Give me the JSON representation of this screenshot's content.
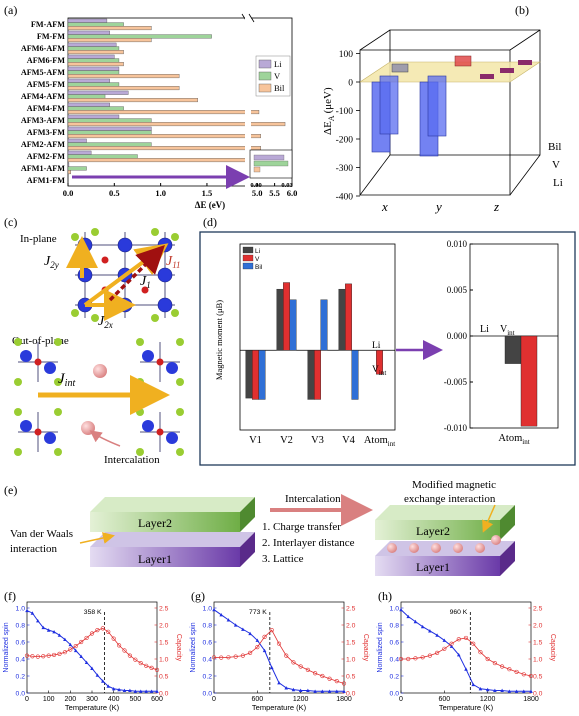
{
  "panel_labels": {
    "a": "(a)",
    "b": "(b)",
    "c": "(c)",
    "d": "(d)",
    "e": "(e)",
    "f": "(f)",
    "g": "(g)",
    "h": "(h)"
  },
  "chart_data": [
    {
      "id": "a",
      "type": "bar",
      "orientation": "horizontal",
      "categories": [
        "AFM1-FM",
        "AFM1-AFM",
        "AFM2-FM",
        "AFM2-AFM",
        "AFM3-FM",
        "AFM3-AFM",
        "AFM4-FM",
        "AFM4-AFM",
        "AFM5-FM",
        "AFM5-AFM",
        "AFM6-FM",
        "AFM6-AFM",
        "FM-FM",
        "FM-AFM"
      ],
      "series": [
        {
          "name": "Li",
          "color": "#b9a9d6",
          "values": [
            0.0,
            0.01,
            0.25,
            0.2,
            0.9,
            0.55,
            0.45,
            0.65,
            0.45,
            0.55,
            0.5,
            0.52,
            0.45,
            0.42
          ]
        },
        {
          "name": "V",
          "color": "#9ed49a",
          "values": [
            0.0,
            0.2,
            0.75,
            0.9,
            0.9,
            0.9,
            0.6,
            0.4,
            0.55,
            0.55,
            0.55,
            0.55,
            1.55,
            0.6
          ]
        },
        {
          "name": "Bil",
          "color": "#f7c49b",
          "values": [
            0.0,
            0.03,
            5.1,
            5.1,
            5.1,
            5.8,
            5.05,
            1.4,
            1.2,
            1.2,
            0.6,
            0.6,
            0.9,
            0.9
          ]
        }
      ],
      "xlabel": "ΔE (eV)",
      "x_ticks_left": [
        "0.0",
        "0.5",
        "1.0",
        "1.5"
      ],
      "x_ticks_right": [
        "5.0",
        "5.5",
        "6.0"
      ],
      "inset_ticks": [
        "0.00",
        "0.03"
      ]
    },
    {
      "id": "b",
      "type": "bar",
      "variant": "3d",
      "ylabel_main": "ΔE",
      "ylabel_sub": "A",
      "ylabel_unit": "(μeV)",
      "y_ticks": [
        "100",
        "0",
        "-100",
        "-200",
        "-300",
        "-400"
      ],
      "x_categories": [
        "x",
        "y",
        "z"
      ],
      "depth_categories": [
        "Li",
        "V",
        "Bil"
      ],
      "values": {
        "x": {
          "Li": -300,
          "V": -260,
          "Bil": 20
        },
        "y": {
          "Li": -320,
          "V": -270,
          "Bil": 40
        },
        "z": {
          "Li": 20,
          "V": 15,
          "Bil": 10
        }
      }
    },
    {
      "id": "d",
      "type": "bar",
      "ylabel": "Magnetic moment (μB)",
      "categories": [
        "V1",
        "V2",
        "V3",
        "V4",
        "Atomint"
      ],
      "series": [
        {
          "name": "Li",
          "color": "#444444",
          "values": [
            -1.8,
            2.3,
            -1.85,
            2.3,
            0
          ]
        },
        {
          "name": "V",
          "color": "#e03030",
          "values": [
            -1.85,
            2.55,
            -1.85,
            2.5,
            -0.9
          ]
        },
        {
          "name": "Bil",
          "color": "#2f6fd6",
          "values": [
            -1.85,
            1.9,
            1.9,
            -1.85,
            0
          ]
        }
      ],
      "ylim": [
        -3,
        4
      ],
      "inset": {
        "categories": [
          "Atomint"
        ],
        "series": [
          {
            "name": "Li",
            "value": -0.003
          },
          {
            "name": "V",
            "value": -0.0098
          }
        ],
        "y_ticks": [
          "0.010",
          "0.005",
          "0.000",
          "-0.005",
          "-0.010"
        ]
      }
    },
    {
      "id": "f",
      "type": "line",
      "annotation": "358 K",
      "xlabel": "Temperature (K)",
      "ylabel_left": "Normalized spin",
      "ylabel_right": "Capacity",
      "x_ticks": [
        "0",
        "100",
        "200",
        "300",
        "400",
        "500",
        "600"
      ],
      "y_left_ticks": [
        "0.0",
        "0.2",
        "0.4",
        "0.6",
        "0.8",
        "1.0"
      ],
      "y_right_ticks": [
        "0.0",
        "0.5",
        "1.0",
        "1.5",
        "2.0",
        "2.5"
      ],
      "transition_x": 358,
      "series": [
        {
          "name": "Normalized spin",
          "color": "#1f2fe0",
          "x": [
            0,
            25,
            50,
            75,
            100,
            125,
            150,
            175,
            200,
            225,
            250,
            275,
            300,
            325,
            350,
            375,
            400,
            425,
            450,
            475,
            500,
            525,
            550,
            575,
            600
          ],
          "y": [
            0.97,
            0.94,
            0.85,
            0.77,
            0.74,
            0.72,
            0.68,
            0.63,
            0.57,
            0.5,
            0.43,
            0.36,
            0.29,
            0.21,
            0.14,
            0.08,
            0.05,
            0.04,
            0.03,
            0.03,
            0.02,
            0.02,
            0.02,
            0.02,
            0.02
          ]
        },
        {
          "name": "Capacity",
          "color": "#e03030",
          "x": [
            0,
            25,
            50,
            75,
            100,
            125,
            150,
            175,
            200,
            225,
            250,
            275,
            300,
            325,
            350,
            375,
            400,
            425,
            450,
            475,
            500,
            525,
            550,
            575,
            600
          ],
          "y": [
            1.1,
            1.08,
            1.07,
            1.08,
            1.1,
            1.12,
            1.15,
            1.2,
            1.28,
            1.38,
            1.5,
            1.62,
            1.75,
            1.85,
            1.9,
            1.8,
            1.6,
            1.4,
            1.25,
            1.1,
            0.98,
            0.88,
            0.8,
            0.74,
            0.68
          ]
        }
      ]
    },
    {
      "id": "g",
      "type": "line",
      "annotation": "773 K",
      "xlabel": "Temperature (K)",
      "ylabel_left": "Normalized spin",
      "ylabel_right": "Capacity",
      "x_ticks": [
        "0",
        "600",
        "1200",
        "1800"
      ],
      "y_left_ticks": [
        "0.0",
        "0.2",
        "0.4",
        "0.6",
        "0.8",
        "1.0"
      ],
      "y_right_ticks": [
        "0.0",
        "0.5",
        "1.0",
        "1.5",
        "2.0",
        "2.5"
      ],
      "transition_x": 773,
      "series": [
        {
          "name": "Normalized spin",
          "color": "#1f2fe0",
          "x": [
            0,
            100,
            200,
            300,
            400,
            500,
            600,
            700,
            800,
            900,
            1000,
            1100,
            1200,
            1300,
            1400,
            1500,
            1600,
            1700,
            1800
          ],
          "y": [
            0.98,
            0.92,
            0.86,
            0.8,
            0.75,
            0.7,
            0.62,
            0.5,
            0.3,
            0.12,
            0.06,
            0.04,
            0.03,
            0.03,
            0.02,
            0.02,
            0.02,
            0.02,
            0.02
          ]
        },
        {
          "name": "Capacity",
          "color": "#e03030",
          "x": [
            0,
            100,
            200,
            300,
            400,
            500,
            600,
            700,
            800,
            900,
            1000,
            1100,
            1200,
            1300,
            1400,
            1500,
            1600,
            1700,
            1800
          ],
          "y": [
            1.05,
            1.04,
            1.05,
            1.07,
            1.1,
            1.18,
            1.35,
            1.65,
            1.85,
            1.45,
            1.1,
            0.9,
            0.78,
            0.68,
            0.58,
            0.5,
            0.42,
            0.35,
            0.28
          ]
        }
      ]
    },
    {
      "id": "h",
      "type": "line",
      "annotation": "960 K",
      "xlabel": "Temperature (K)",
      "ylabel_left": "Normalized spin",
      "ylabel_right": "Capacity",
      "x_ticks": [
        "0",
        "600",
        "1200",
        "1800"
      ],
      "y_left_ticks": [
        "0.0",
        "0.2",
        "0.4",
        "0.6",
        "0.8",
        "1.0"
      ],
      "y_right_ticks": [
        "0.0",
        "0.5",
        "1.0",
        "1.5",
        "2.0",
        "2.5"
      ],
      "transition_x": 960,
      "series": [
        {
          "name": "Normalized spin",
          "color": "#1f2fe0",
          "x": [
            0,
            100,
            200,
            300,
            400,
            500,
            600,
            700,
            800,
            900,
            1000,
            1100,
            1200,
            1300,
            1400,
            1500,
            1600,
            1700,
            1800
          ],
          "y": [
            0.98,
            0.9,
            0.84,
            0.78,
            0.73,
            0.68,
            0.62,
            0.55,
            0.45,
            0.28,
            0.1,
            0.05,
            0.04,
            0.03,
            0.03,
            0.02,
            0.02,
            0.02,
            0.02
          ]
        },
        {
          "name": "Capacity",
          "color": "#e03030",
          "x": [
            0,
            100,
            200,
            300,
            400,
            500,
            600,
            700,
            800,
            900,
            1000,
            1100,
            1200,
            1300,
            1400,
            1500,
            1600,
            1700,
            1800
          ],
          "y": [
            1.0,
            1.0,
            1.02,
            1.05,
            1.1,
            1.18,
            1.3,
            1.45,
            1.58,
            1.62,
            1.45,
            1.2,
            1.0,
            0.88,
            0.78,
            0.7,
            0.62,
            0.55,
            0.5
          ]
        }
      ]
    }
  ],
  "panel_c": {
    "in_plane": "In-plane",
    "out_of_plane": "Out-of-plane",
    "j11": "J",
    "j11_sub": "11",
    "j1": "J",
    "j1_sub": "1",
    "j2y": "J",
    "j2y_sub": "2y",
    "j2x": "J",
    "j2x_sub": "2x",
    "jint": "J",
    "jint_sub": "int",
    "intercalation": "Intercalation"
  },
  "panel_d_labels": {
    "li": "Li",
    "vint": "V",
    "vint_sub": "int",
    "atom_sub": "int",
    "atom": "Atom",
    "inset_li": "Li",
    "inset_v": "V",
    "inset_vsub": "int"
  },
  "panel_e": {
    "layer2": "Layer2",
    "layer1": "Layer1",
    "vdw1": "Van der Waals",
    "vdw2": "interaction",
    "intercalation": "Intercalation",
    "item1": "1. Charge transfer",
    "item2": "2. Interlayer distance",
    "item3": "3. Lattice",
    "mod1": "Modified magnetic",
    "mod2": "exchange interaction"
  }
}
